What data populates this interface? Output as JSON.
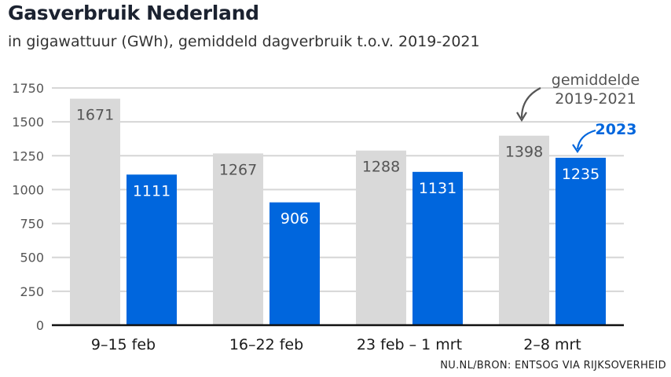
{
  "chart_data": {
    "type": "bar",
    "title": "Gasverbruik Nederland",
    "subtitle": "in gigawattuur (GWh), gemiddeld dagverbruik t.o.v. 2019-2021",
    "categories": [
      "9–15 feb",
      "16–22 feb",
      "23 feb – 1 mrt",
      "2–8 mrt"
    ],
    "series": [
      {
        "name": "gemiddelde 2019-2021",
        "values": [
          1671,
          1267,
          1288,
          1398
        ],
        "color": "#d9d9d9"
      },
      {
        "name": "2023",
        "values": [
          1111,
          906,
          1131,
          1235
        ],
        "color": "#0066dd"
      }
    ],
    "ylim": [
      0,
      1750
    ],
    "yticks": [
      "0",
      "250",
      "500",
      "750",
      "1000",
      "1250",
      "1500",
      "1750"
    ],
    "grid": true,
    "annotations": {
      "baseline_line1": "gemiddelde",
      "baseline_line2": "2019-2021",
      "current": "2023"
    }
  },
  "source": "NU.NL/BRON: ENTSOG VIA RIJKSOVERHEID"
}
